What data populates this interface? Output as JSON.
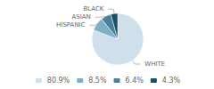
{
  "chart_data": {
    "type": "pie",
    "categories": [
      "WHITE",
      "HISPANIC",
      "ASIAN",
      "BLACK"
    ],
    "values": [
      80.9,
      8.5,
      6.4,
      4.3
    ],
    "value_labels": [
      "80.9%",
      "8.5%",
      "6.4%",
      "4.3%"
    ],
    "colors": [
      "#cfe0eb",
      "#7eafc4",
      "#4a8099",
      "#1c4f63"
    ],
    "legend": "bottom"
  }
}
